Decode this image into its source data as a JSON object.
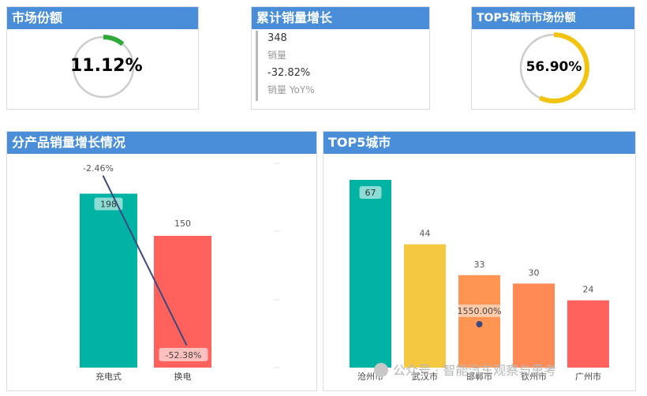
{
  "cards": {
    "market_share": {
      "title": "市场份额",
      "value": "11.12%",
      "fraction": 0.1112,
      "color": "#2eaa3a"
    },
    "cumulative": {
      "title": "累计销量增长",
      "sales_value": "348",
      "sales_label": "销量",
      "yoy_value": "-32.82%",
      "yoy_label": "销量 YoY%"
    },
    "top5_share": {
      "title": "TOP5城市市场份额",
      "value": "56.90%",
      "fraction": 0.569,
      "color": "#f2c40f"
    }
  },
  "chart_data": [
    {
      "type": "bar",
      "title": "分产品销量增长情况",
      "categories": [
        "充电式",
        "换电"
      ],
      "values": [
        198,
        150
      ],
      "colors": [
        "#00b3a3",
        "#ff615c"
      ],
      "line_series": {
        "values": [
          -2.46,
          -52.38
        ],
        "labels": [
          "-2.46%",
          "-52.38%"
        ],
        "color": "#3a4a80"
      },
      "ylim": [
        0,
        220
      ]
    },
    {
      "type": "bar",
      "title": "TOP5城市",
      "categories": [
        "沧州市",
        "武汉市",
        "邯郸市",
        "钦州市",
        "广州市"
      ],
      "values": [
        67,
        44,
        33,
        30,
        24
      ],
      "colors": [
        "#00b3a3",
        "#f5c842",
        "#ff9552",
        "#ff8a56",
        "#ff615c"
      ],
      "point": {
        "category": "邯郸市",
        "label": "1550.00%"
      },
      "ylim": [
        0,
        75
      ]
    }
  ],
  "watermark": "公众号 · 智能汽车观察与思考"
}
